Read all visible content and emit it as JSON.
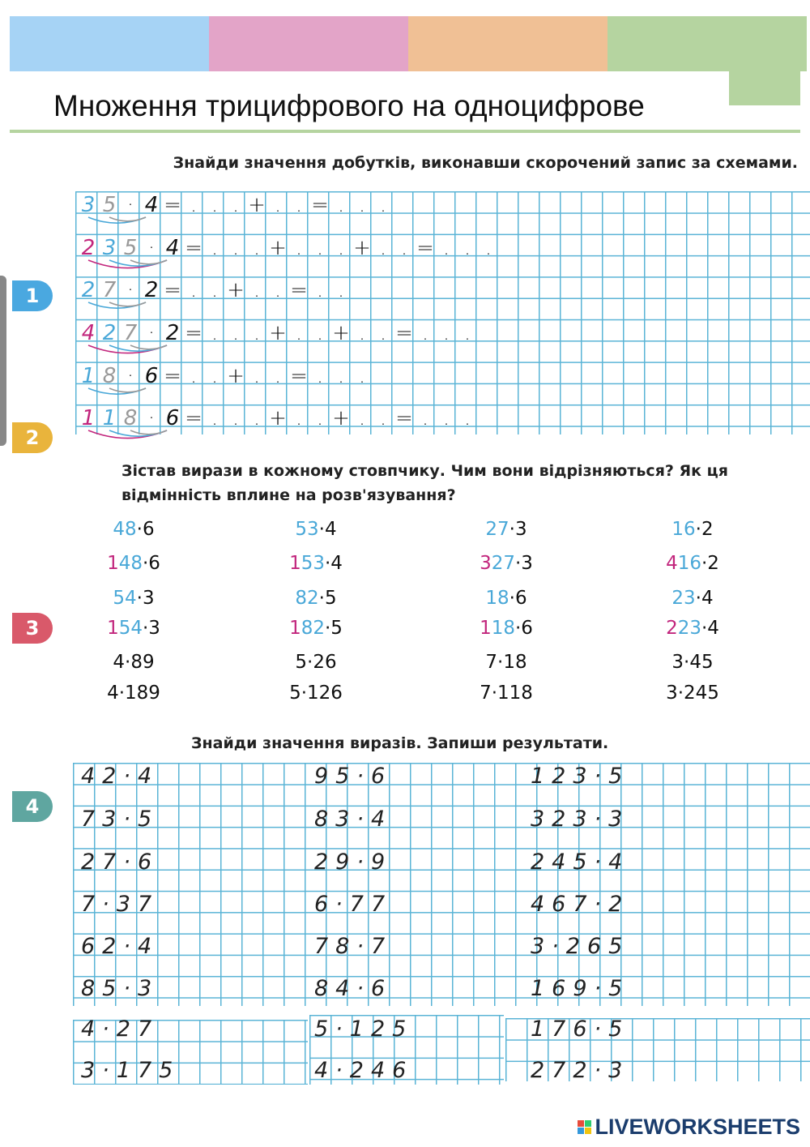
{
  "colors": {
    "blue": "#4aa8d8",
    "magenta": "#c2267d",
    "gray": "#999999",
    "black": "#111111",
    "grid": "#5ab4d6"
  },
  "header": {
    "bars": [
      "#a6d3f5",
      "#e3a4c8",
      "#f0c095",
      "#b5d4a0"
    ],
    "title": "Множення трицифрового на одноцифрове"
  },
  "tasks": [
    {
      "number": "1",
      "color": "#4aa8e0",
      "instruction": "Знайди значення добутків, виконавши скорочений запис за схемами."
    },
    {
      "number": "2",
      "color": "#e9b43c",
      "instruction_line1": "Зістав вирази в кожному стовпчику. Чим вони відрізняються? Як ця",
      "instruction_line2": "відмінність вплине на розв'язування?"
    },
    {
      "number": "3",
      "color": "#d9596a"
    },
    {
      "number": "4",
      "color": "#5fa6a0",
      "instruction": "Знайди значення виразів. Запиши результати."
    }
  ],
  "schemes": [
    [
      [
        "3",
        "blue"
      ],
      [
        "5",
        "gray"
      ],
      [
        "·",
        "black"
      ],
      [
        "4",
        "black"
      ],
      [
        "=",
        "black"
      ],
      [
        ".",
        ""
      ],
      [
        ".",
        ""
      ],
      [
        ".",
        ""
      ],
      [
        "+",
        ""
      ],
      [
        ".",
        ""
      ],
      [
        ".",
        ""
      ],
      [
        "=",
        ""
      ],
      [
        ".",
        ""
      ],
      [
        ".",
        ""
      ],
      [
        ".",
        ""
      ]
    ],
    [
      [
        "2",
        "magenta"
      ],
      [
        "3",
        "blue"
      ],
      [
        "5",
        "gray"
      ],
      [
        "·",
        "black"
      ],
      [
        "4",
        "black"
      ],
      [
        "=",
        ""
      ],
      [
        ".",
        ""
      ],
      [
        ".",
        ""
      ],
      [
        ".",
        ""
      ],
      [
        "+",
        ""
      ],
      [
        ".",
        ""
      ],
      [
        ".",
        ""
      ],
      [
        ".",
        ""
      ],
      [
        "+",
        ""
      ],
      [
        ".",
        ""
      ],
      [
        ".",
        ""
      ],
      [
        "=",
        ""
      ],
      [
        ".",
        ""
      ],
      [
        ".",
        ""
      ],
      [
        ".",
        ""
      ]
    ],
    [
      [
        "2",
        "blue"
      ],
      [
        "7",
        "gray"
      ],
      [
        "·",
        "black"
      ],
      [
        "2",
        "black"
      ],
      [
        "=",
        ""
      ],
      [
        ".",
        ""
      ],
      [
        ".",
        ""
      ],
      [
        "+",
        ""
      ],
      [
        ".",
        ""
      ],
      [
        ".",
        ""
      ],
      [
        "=",
        ""
      ],
      [
        ".",
        ""
      ],
      [
        ".",
        ""
      ]
    ],
    [
      [
        "4",
        "magenta"
      ],
      [
        "2",
        "blue"
      ],
      [
        "7",
        "gray"
      ],
      [
        "·",
        "black"
      ],
      [
        "2",
        "black"
      ],
      [
        "=",
        ""
      ],
      [
        ".",
        ""
      ],
      [
        ".",
        ""
      ],
      [
        ".",
        ""
      ],
      [
        "+",
        ""
      ],
      [
        ".",
        ""
      ],
      [
        ".",
        ""
      ],
      [
        "+",
        ""
      ],
      [
        ".",
        ""
      ],
      [
        ".",
        ""
      ],
      [
        "=",
        ""
      ],
      [
        ".",
        ""
      ],
      [
        ".",
        ""
      ],
      [
        ".",
        ""
      ]
    ],
    [
      [
        "1",
        "blue"
      ],
      [
        "8",
        "gray"
      ],
      [
        "·",
        "black"
      ],
      [
        "6",
        "black"
      ],
      [
        "=",
        ""
      ],
      [
        ".",
        ""
      ],
      [
        ".",
        ""
      ],
      [
        "+",
        ""
      ],
      [
        ".",
        ""
      ],
      [
        ".",
        ""
      ],
      [
        "=",
        ""
      ],
      [
        ".",
        ""
      ],
      [
        ".",
        ""
      ],
      [
        ".",
        ""
      ]
    ],
    [
      [
        "1",
        "magenta"
      ],
      [
        "1",
        "blue"
      ],
      [
        "8",
        "gray"
      ],
      [
        "·",
        "black"
      ],
      [
        "6",
        "black"
      ],
      [
        "=",
        ""
      ],
      [
        ".",
        ""
      ],
      [
        ".",
        ""
      ],
      [
        ".",
        ""
      ],
      [
        "+",
        ""
      ],
      [
        ".",
        ""
      ],
      [
        ".",
        ""
      ],
      [
        "+",
        ""
      ],
      [
        ".",
        ""
      ],
      [
        ".",
        ""
      ],
      [
        "=",
        ""
      ],
      [
        ".",
        ""
      ],
      [
        ".",
        ""
      ],
      [
        ".",
        ""
      ]
    ]
  ],
  "compare_columns": [
    [
      [
        [
          "48",
          "blue"
        ],
        [
          "·6",
          "black"
        ]
      ],
      [
        [
          "1",
          "magenta"
        ],
        [
          "48",
          "blue"
        ],
        [
          "·6",
          "black"
        ]
      ],
      [
        [
          "54",
          "blue"
        ],
        [
          "·3",
          "black"
        ]
      ],
      [
        [
          "1",
          "magenta"
        ],
        [
          "54",
          "blue"
        ],
        [
          "·3",
          "black"
        ]
      ],
      [
        [
          "4·89",
          "black"
        ]
      ],
      [
        [
          "4·189",
          "black"
        ]
      ]
    ],
    [
      [
        [
          "53",
          "blue"
        ],
        [
          "·4",
          "black"
        ]
      ],
      [
        [
          "1",
          "magenta"
        ],
        [
          "53",
          "blue"
        ],
        [
          "·4",
          "black"
        ]
      ],
      [
        [
          "82",
          "blue"
        ],
        [
          "·5",
          "black"
        ]
      ],
      [
        [
          "1",
          "magenta"
        ],
        [
          "82",
          "blue"
        ],
        [
          "·5",
          "black"
        ]
      ],
      [
        [
          "5·26",
          "black"
        ]
      ],
      [
        [
          "5·126",
          "black"
        ]
      ]
    ],
    [
      [
        [
          "27",
          "blue"
        ],
        [
          "·3",
          "black"
        ]
      ],
      [
        [
          "3",
          "magenta"
        ],
        [
          "27",
          "blue"
        ],
        [
          "·3",
          "black"
        ]
      ],
      [
        [
          "18",
          "blue"
        ],
        [
          "·6",
          "black"
        ]
      ],
      [
        [
          "1",
          "magenta"
        ],
        [
          "18",
          "blue"
        ],
        [
          "·6",
          "black"
        ]
      ],
      [
        [
          "7·18",
          "black"
        ]
      ],
      [
        [
          "7·118",
          "black"
        ]
      ]
    ],
    [
      [
        [
          "16",
          "blue"
        ],
        [
          "·2",
          "black"
        ]
      ],
      [
        [
          "4",
          "magenta"
        ],
        [
          "16",
          "blue"
        ],
        [
          "·2",
          "black"
        ]
      ],
      [
        [
          "23",
          "blue"
        ],
        [
          "·4",
          "black"
        ]
      ],
      [
        [
          "2",
          "magenta"
        ],
        [
          "23",
          "blue"
        ],
        [
          "·4",
          "black"
        ]
      ],
      [
        [
          "3·45",
          "black"
        ]
      ],
      [
        [
          "3·245",
          "black"
        ]
      ]
    ]
  ],
  "exercises": [
    [
      "42·4",
      "73·5",
      "27·6",
      "7·37",
      "62·4",
      "85·3",
      "4·27",
      "3·175"
    ],
    [
      "95·6",
      "83·4",
      "29·9",
      "6·77",
      "78·7",
      "84·6",
      "5·125",
      "4·246"
    ],
    [
      "123·5",
      "323·3",
      "245·4",
      "467·2",
      "3·265",
      "169·5",
      "176·5",
      "272·3"
    ]
  ],
  "footer": {
    "logo_text": "LIVEWORKSHEETS",
    "logo_colors": [
      "#e74c3c",
      "#2ecc71",
      "#3498db",
      "#f1c40f"
    ]
  }
}
